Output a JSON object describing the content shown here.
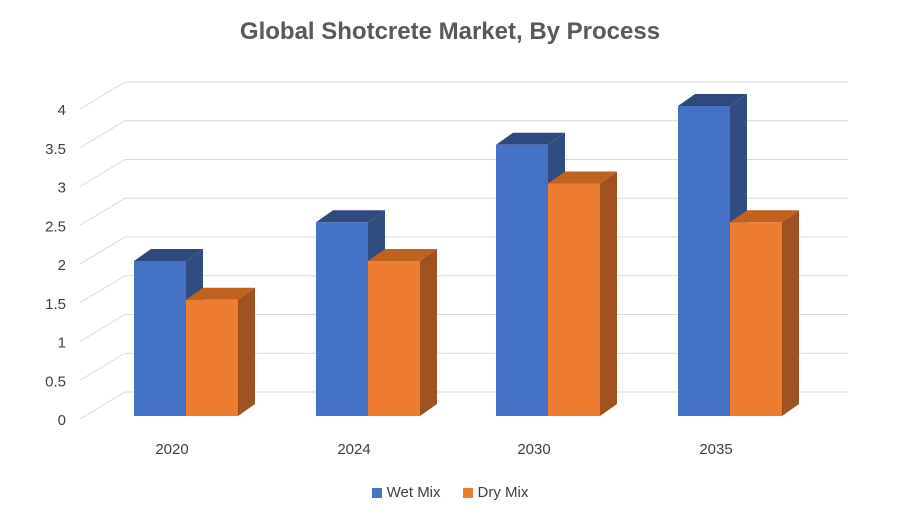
{
  "chart_data": {
    "type": "bar",
    "title": "Global Shotcrete Market, By Process",
    "categories": [
      "2020",
      "2024",
      "2030",
      "2035"
    ],
    "series": [
      {
        "name": "Wet Mix",
        "values": [
          2,
          2.5,
          3.5,
          4
        ],
        "color": "#4472C4",
        "side_color": "#2F4D7F",
        "top_color": "#2E4A7D"
      },
      {
        "name": "Dry Mix",
        "values": [
          1.5,
          2,
          3,
          2.5
        ],
        "color": "#ED7D31",
        "side_color": "#9E5220",
        "top_color": "#C0621F"
      }
    ],
    "y_ticks": [
      "0",
      "0.5",
      "1",
      "1.5",
      "2",
      "2.5",
      "3",
      "3.5",
      "4"
    ],
    "ylim": [
      0,
      4
    ],
    "xlabel": "",
    "ylabel": "",
    "grid": true,
    "legend_position": "bottom",
    "style": "3d-clustered-column"
  }
}
